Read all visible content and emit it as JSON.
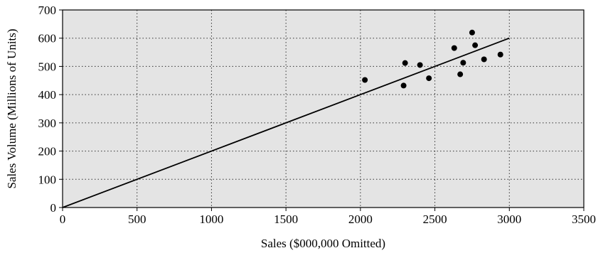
{
  "chart_data": {
    "type": "scatter",
    "xlabel": "Sales ($000,000 Omitted)",
    "ylabel": "Sales Volume (Millions of Units)",
    "xlim": [
      0,
      3500
    ],
    "ylim": [
      0,
      700
    ],
    "x_ticks": [
      0,
      500,
      1000,
      1500,
      2000,
      2500,
      3000,
      3500
    ],
    "y_ticks": [
      0,
      100,
      200,
      300,
      400,
      500,
      600,
      700
    ],
    "grid": true,
    "background_color": "#e4e4e4",
    "points": [
      {
        "x": 2030,
        "y": 452
      },
      {
        "x": 2290,
        "y": 432
      },
      {
        "x": 2300,
        "y": 512
      },
      {
        "x": 2400,
        "y": 505
      },
      {
        "x": 2460,
        "y": 458
      },
      {
        "x": 2630,
        "y": 565
      },
      {
        "x": 2670,
        "y": 472
      },
      {
        "x": 2690,
        "y": 513
      },
      {
        "x": 2750,
        "y": 620
      },
      {
        "x": 2770,
        "y": 575
      },
      {
        "x": 2830,
        "y": 525
      },
      {
        "x": 2940,
        "y": 542
      }
    ],
    "line": {
      "x": [
        0,
        3000
      ],
      "y": [
        0,
        600
      ]
    }
  }
}
